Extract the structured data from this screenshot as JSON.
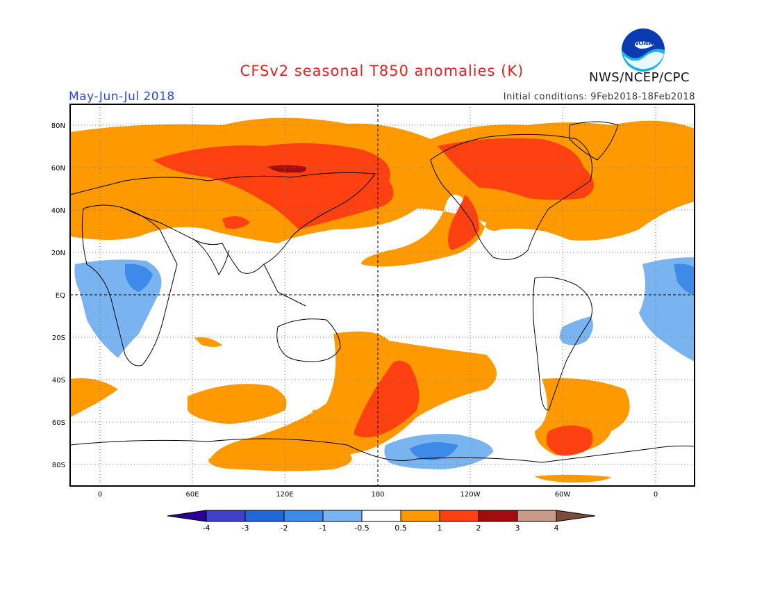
{
  "header": {
    "title": "CFSv2 seasonal T850 anomalies (K)",
    "period": "May-Jun-Jul 2018",
    "initial_conditions": "Initial conditions: 9Feb2018-18Feb2018",
    "agency": "NWS/NCEP/CPC",
    "logo_text": "NOAA"
  },
  "map": {
    "projection": "equirectangular",
    "lat_labels": [
      "80N",
      "60N",
      "40N",
      "20N",
      "EQ",
      "20S",
      "40S",
      "60S",
      "80S"
    ],
    "lon_labels": [
      "0",
      "60E",
      "120E",
      "180",
      "120W",
      "60W",
      "0"
    ],
    "grid": "dotted"
  },
  "colorbar": {
    "tick_labels": [
      "-4",
      "-3",
      "-2",
      "-1",
      "-0.5",
      "0.5",
      "1",
      "2",
      "3",
      "4"
    ],
    "colors": [
      "#2a0096",
      "#4040c8",
      "#2266d8",
      "#3d8ae8",
      "#7ab4f0",
      "#ffffff",
      "#ff9900",
      "#ff4010",
      "#a30c0c",
      "#c89b88",
      "#7a4a3a"
    ]
  },
  "colors": {
    "title": "#e8201e",
    "period": "#2448e6",
    "noaa_blue": "#0a3bb0",
    "noaa_cyan": "#1fb4e4"
  }
}
